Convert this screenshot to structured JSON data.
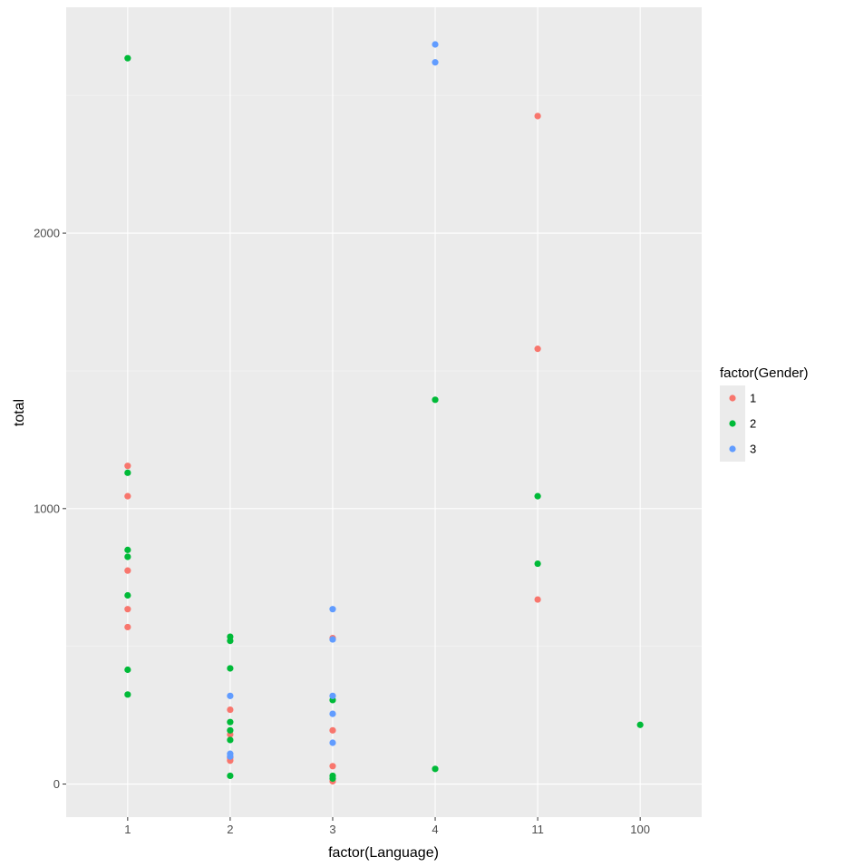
{
  "chart_data": {
    "type": "scatter",
    "title": "",
    "xlabel": "factor(Language)",
    "ylabel": "total",
    "categories": [
      "1",
      "2",
      "3",
      "4",
      "11",
      "100"
    ],
    "ylim": [
      -120,
      2820
    ],
    "y_ticks": [
      0,
      1000,
      2000
    ],
    "grid": true,
    "legend": {
      "title": "factor(Gender)",
      "position": "right",
      "entries": [
        {
          "label": "1",
          "color": "#F8766D"
        },
        {
          "label": "2",
          "color": "#00BA38"
        },
        {
          "label": "3",
          "color": "#619CFF"
        }
      ]
    },
    "series": [
      {
        "group": "1",
        "color": "#F8766D",
        "points": [
          {
            "x": "1",
            "y": 1155
          },
          {
            "x": "1",
            "y": 1045
          },
          {
            "x": "1",
            "y": 775
          },
          {
            "x": "1",
            "y": 635
          },
          {
            "x": "1",
            "y": 570
          },
          {
            "x": "2",
            "y": 270
          },
          {
            "x": "2",
            "y": 180
          },
          {
            "x": "2",
            "y": 95
          },
          {
            "x": "2",
            "y": 85
          },
          {
            "x": "3",
            "y": 530
          },
          {
            "x": "3",
            "y": 195
          },
          {
            "x": "3",
            "y": 65
          },
          {
            "x": "3",
            "y": 10
          },
          {
            "x": "11",
            "y": 2425
          },
          {
            "x": "11",
            "y": 1580
          },
          {
            "x": "11",
            "y": 670
          }
        ]
      },
      {
        "group": "2",
        "color": "#00BA38",
        "points": [
          {
            "x": "1",
            "y": 2635
          },
          {
            "x": "1",
            "y": 1130
          },
          {
            "x": "1",
            "y": 850
          },
          {
            "x": "1",
            "y": 825
          },
          {
            "x": "1",
            "y": 685
          },
          {
            "x": "1",
            "y": 415
          },
          {
            "x": "1",
            "y": 325
          },
          {
            "x": "2",
            "y": 535
          },
          {
            "x": "2",
            "y": 520
          },
          {
            "x": "2",
            "y": 420
          },
          {
            "x": "2",
            "y": 225
          },
          {
            "x": "2",
            "y": 195
          },
          {
            "x": "2",
            "y": 160
          },
          {
            "x": "2",
            "y": 30
          },
          {
            "x": "3",
            "y": 305
          },
          {
            "x": "3",
            "y": 30
          },
          {
            "x": "3",
            "y": 20
          },
          {
            "x": "4",
            "y": 1395
          },
          {
            "x": "4",
            "y": 55
          },
          {
            "x": "11",
            "y": 1045
          },
          {
            "x": "11",
            "y": 800
          },
          {
            "x": "100",
            "y": 215
          }
        ]
      },
      {
        "group": "3",
        "color": "#619CFF",
        "points": [
          {
            "x": "2",
            "y": 320
          },
          {
            "x": "2",
            "y": 110
          },
          {
            "x": "2",
            "y": 100
          },
          {
            "x": "3",
            "y": 635
          },
          {
            "x": "3",
            "y": 525
          },
          {
            "x": "3",
            "y": 320
          },
          {
            "x": "3",
            "y": 255
          },
          {
            "x": "3",
            "y": 150
          },
          {
            "x": "4",
            "y": 2685
          },
          {
            "x": "4",
            "y": 2620
          }
        ]
      }
    ]
  },
  "style": {
    "panel_bg": "#EBEBEB",
    "grid_major": "#FFFFFF",
    "grid_minor": "#F5F5F5",
    "legend_key_bg": "#EBEBEB"
  }
}
